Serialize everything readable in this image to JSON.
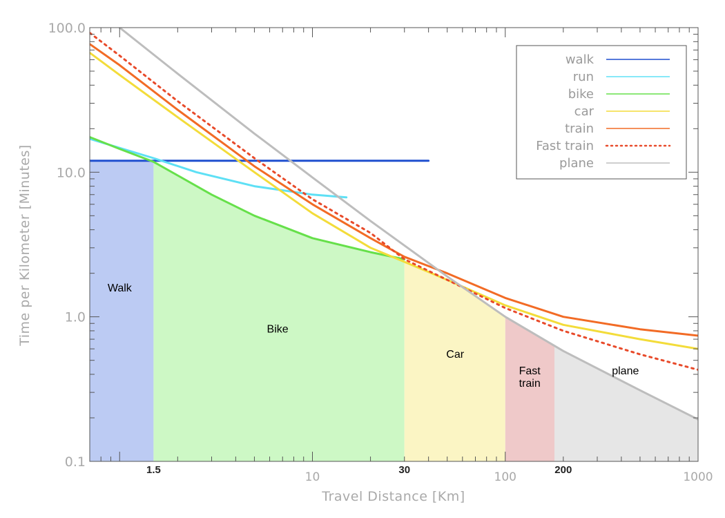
{
  "chart_data": {
    "type": "line",
    "xlabel": "Travel Distance [Km]",
    "ylabel": "Time per Kilometer [Minutes]",
    "xscale": "log",
    "yscale": "log",
    "xlim": [
      0.7,
      1000
    ],
    "ylim": [
      0.1,
      100
    ],
    "x_ticks": [
      {
        "value": 1.5,
        "label": "1.5",
        "emphasis": true
      },
      {
        "value": 10,
        "label": "10",
        "emphasis": false
      },
      {
        "value": 30,
        "label": "30",
        "emphasis": true
      },
      {
        "value": 100,
        "label": "100",
        "emphasis": false
      },
      {
        "value": 200,
        "label": "200",
        "emphasis": true
      },
      {
        "value": 1000,
        "label": "1000",
        "emphasis": false
      }
    ],
    "y_ticks": [
      {
        "value": 0.1,
        "label": "0.1"
      },
      {
        "value": 1,
        "label": "1.0"
      },
      {
        "value": 10,
        "label": "10.0"
      },
      {
        "value": 100,
        "label": "100.0"
      }
    ],
    "legend": {
      "position": "top-right"
    },
    "series": [
      {
        "name": "walk",
        "color": "#1f4fcf",
        "dash": false,
        "x": [
          0.7,
          40
        ],
        "y": [
          12,
          12
        ]
      },
      {
        "name": "run",
        "color": "#5ee0f5",
        "dash": false,
        "x": [
          0.7,
          1.5,
          2.5,
          5,
          10,
          15
        ],
        "y": [
          17,
          12.5,
          10,
          8,
          7,
          6.7
        ]
      },
      {
        "name": "bike",
        "color": "#66e04a",
        "dash": false,
        "x": [
          0.7,
          1.0,
          1.5,
          2,
          3,
          5,
          10,
          20,
          30
        ],
        "y": [
          17.5,
          14.5,
          11.8,
          9.5,
          7,
          5,
          3.5,
          2.8,
          2.5
        ]
      },
      {
        "name": "car",
        "color": "#f3dc3a",
        "dash": false,
        "x": [
          0.7,
          1,
          2,
          5,
          10,
          20,
          30,
          50,
          100,
          200,
          500,
          1000
        ],
        "y": [
          67,
          47,
          24,
          10,
          5.2,
          3.0,
          2.4,
          1.8,
          1.2,
          0.88,
          0.7,
          0.6
        ]
      },
      {
        "name": "train",
        "color": "#f26b25",
        "dash": false,
        "x": [
          0.7,
          1,
          2,
          5,
          10,
          20,
          30,
          50,
          100,
          200,
          500,
          1000
        ],
        "y": [
          77,
          55,
          27,
          11,
          6,
          3.5,
          2.6,
          2.0,
          1.35,
          1.0,
          0.82,
          0.74
        ]
      },
      {
        "name": "Fast train",
        "color": "#e84a2a",
        "dash": true,
        "x": [
          0.7,
          1,
          2,
          5,
          10,
          20,
          30,
          50,
          100,
          200,
          500,
          1000
        ],
        "y": [
          92,
          64,
          31,
          12.5,
          6.5,
          3.8,
          2.5,
          1.8,
          1.15,
          0.8,
          0.55,
          0.43
        ]
      },
      {
        "name": "plane",
        "color": "#bdbdbd",
        "dash": false,
        "x": [
          1.0,
          2,
          5,
          10,
          20,
          50,
          100,
          200,
          500,
          1000
        ],
        "y": [
          100,
          48,
          18.5,
          9.2,
          4.6,
          1.9,
          1.0,
          0.58,
          0.31,
          0.195
        ]
      }
    ],
    "regions": [
      {
        "label": "Walk",
        "x0": 0.7,
        "x1": 1.5,
        "color": "#bccbf3",
        "label_x": 1.0,
        "label_y": 1.5
      },
      {
        "label": "Bike",
        "x0": 1.5,
        "x1": 30,
        "color": "#cdf8c5",
        "label_x": 6.6,
        "label_y": 0.78
      },
      {
        "label": "Car",
        "x0": 30,
        "x1": 100,
        "color": "#fbf5c4",
        "label_x": 55,
        "label_y": 0.52
      },
      {
        "label": "Fast\ntrain",
        "x0": 100,
        "x1": 180,
        "color": "#efc9c9",
        "label_x": 134,
        "label_y": 0.4
      },
      {
        "label": "plane",
        "x0": 180,
        "x1": 1000,
        "color": "#e6e6e6",
        "label_x": 420,
        "label_y": 0.4
      }
    ]
  }
}
